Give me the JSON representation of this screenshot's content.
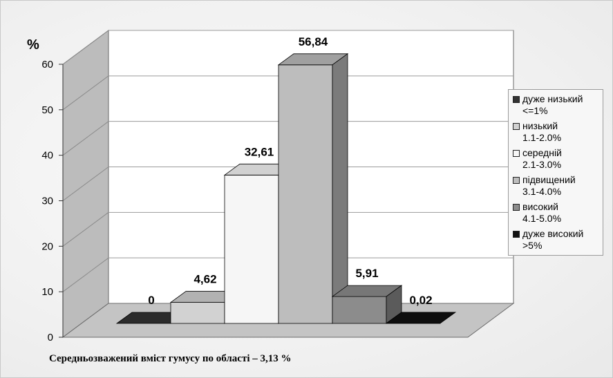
{
  "chart_data": {
    "type": "bar",
    "ylabel": "%",
    "ylim": [
      0,
      60
    ],
    "yticks": [
      0,
      10,
      20,
      30,
      40,
      50,
      60
    ],
    "grid": true,
    "legend_position": "right",
    "categories": [
      {
        "name": "дуже низький",
        "range": "<=1%",
        "value": 0,
        "label": "0",
        "color": "#333333"
      },
      {
        "name": "низький",
        "range": "1.1-2.0%",
        "value": 4.62,
        "label": "4,62",
        "color": "#d2d2d2"
      },
      {
        "name": "середній",
        "range": "2.1-3.0%",
        "value": 32.61,
        "label": "32,61",
        "color": "#f6f6f6"
      },
      {
        "name": "підвищений",
        "range": "3.1-4.0%",
        "value": 56.84,
        "label": "56,84",
        "color": "#bdbdbd"
      },
      {
        "name": "високий",
        "range": "4.1-5.0%",
        "value": 5.91,
        "label": "5,91",
        "color": "#8c8c8c"
      },
      {
        "name": "дуже високий",
        "range": ">5%",
        "value": 0.02,
        "label": "0,02",
        "color": "#111111"
      }
    ]
  },
  "caption": "Середньозважений вміст гумусу по області – 3,13 %"
}
